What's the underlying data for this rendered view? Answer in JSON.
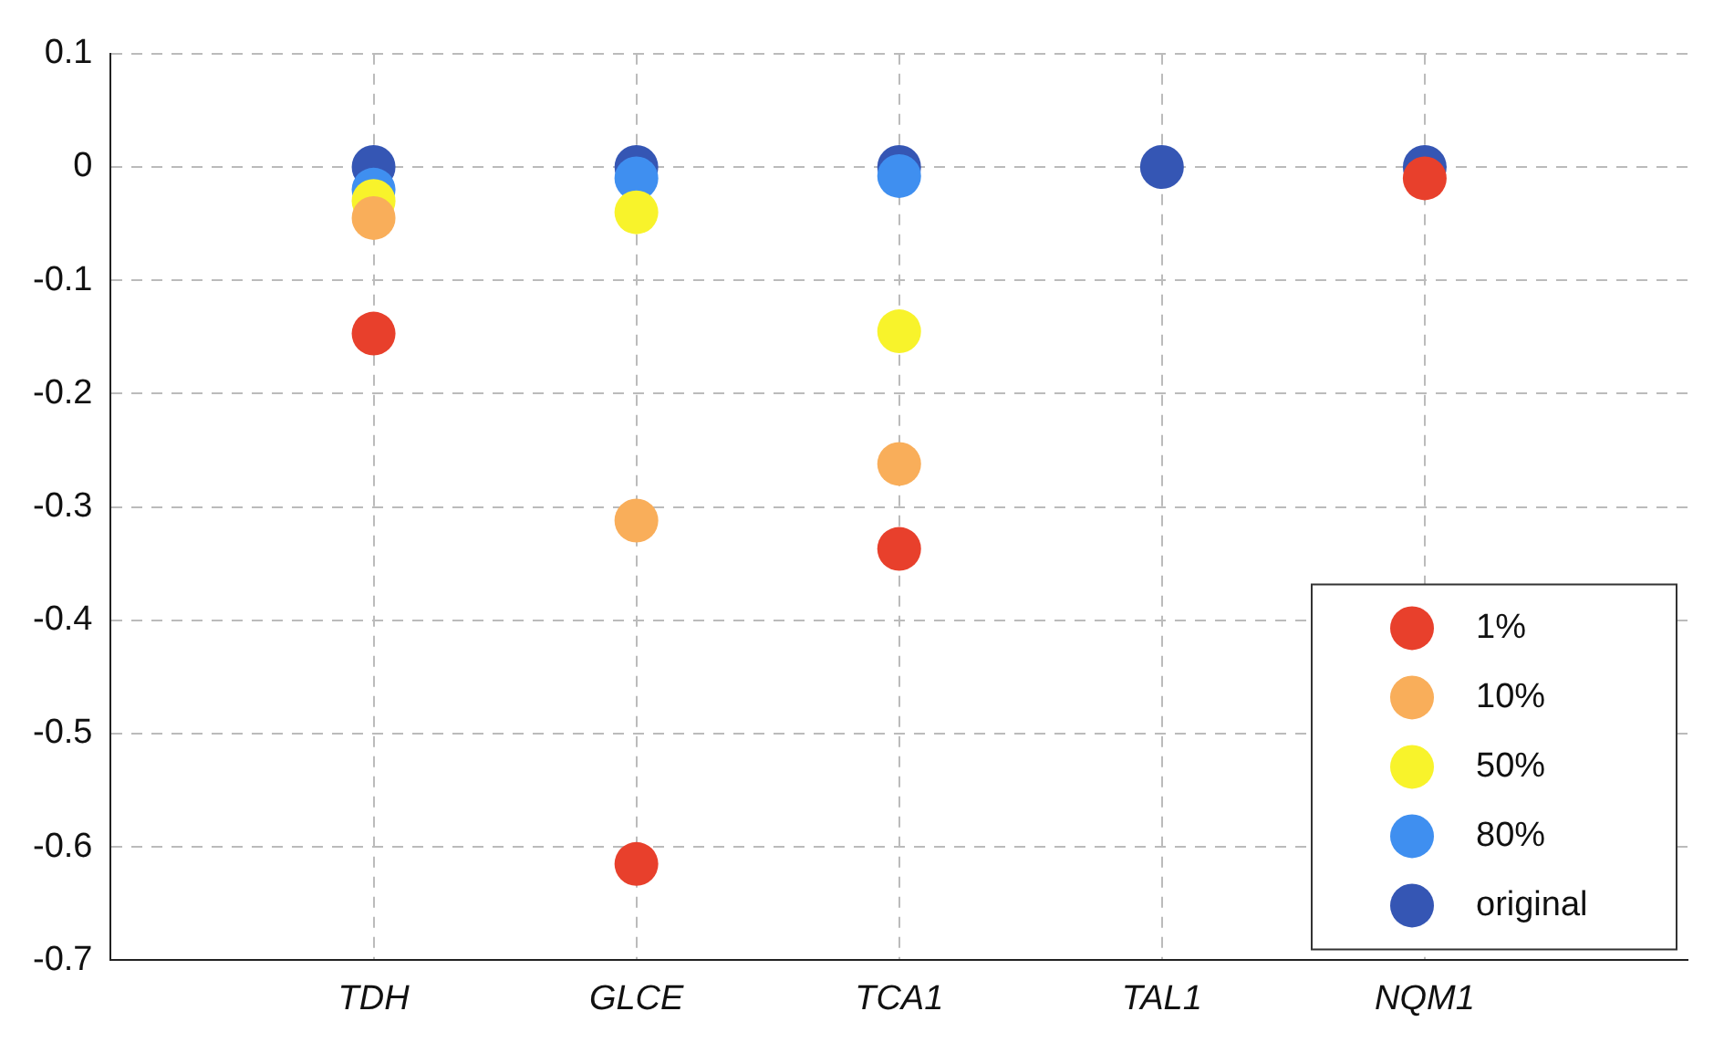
{
  "chart_data": {
    "type": "scatter",
    "categories": [
      "TDH",
      "GLCE",
      "TCA1",
      "TAL1",
      "NQM1"
    ],
    "series": [
      {
        "name": "1%",
        "color": "#e8402c",
        "values": [
          -0.147,
          -0.615,
          -0.337,
          null,
          -0.01
        ]
      },
      {
        "name": "10%",
        "color": "#f9ae5a",
        "values": [
          -0.045,
          -0.312,
          -0.262,
          null,
          null
        ]
      },
      {
        "name": "50%",
        "color": "#f8f32b",
        "values": [
          -0.03,
          -0.04,
          -0.145,
          null,
          null
        ]
      },
      {
        "name": "80%",
        "color": "#3f8ff0",
        "values": [
          -0.02,
          -0.01,
          -0.008,
          null,
          null
        ]
      },
      {
        "name": "original",
        "color": "#3556b4",
        "values": [
          0,
          0,
          0,
          0,
          0
        ]
      }
    ],
    "ylim": [
      -0.7,
      0.1
    ],
    "yticks": [
      -0.7,
      -0.6,
      -0.5,
      -0.4,
      -0.3,
      -0.2,
      -0.1,
      0,
      0.1
    ],
    "grid": true,
    "legend": "bottom right",
    "marker": "circle"
  }
}
